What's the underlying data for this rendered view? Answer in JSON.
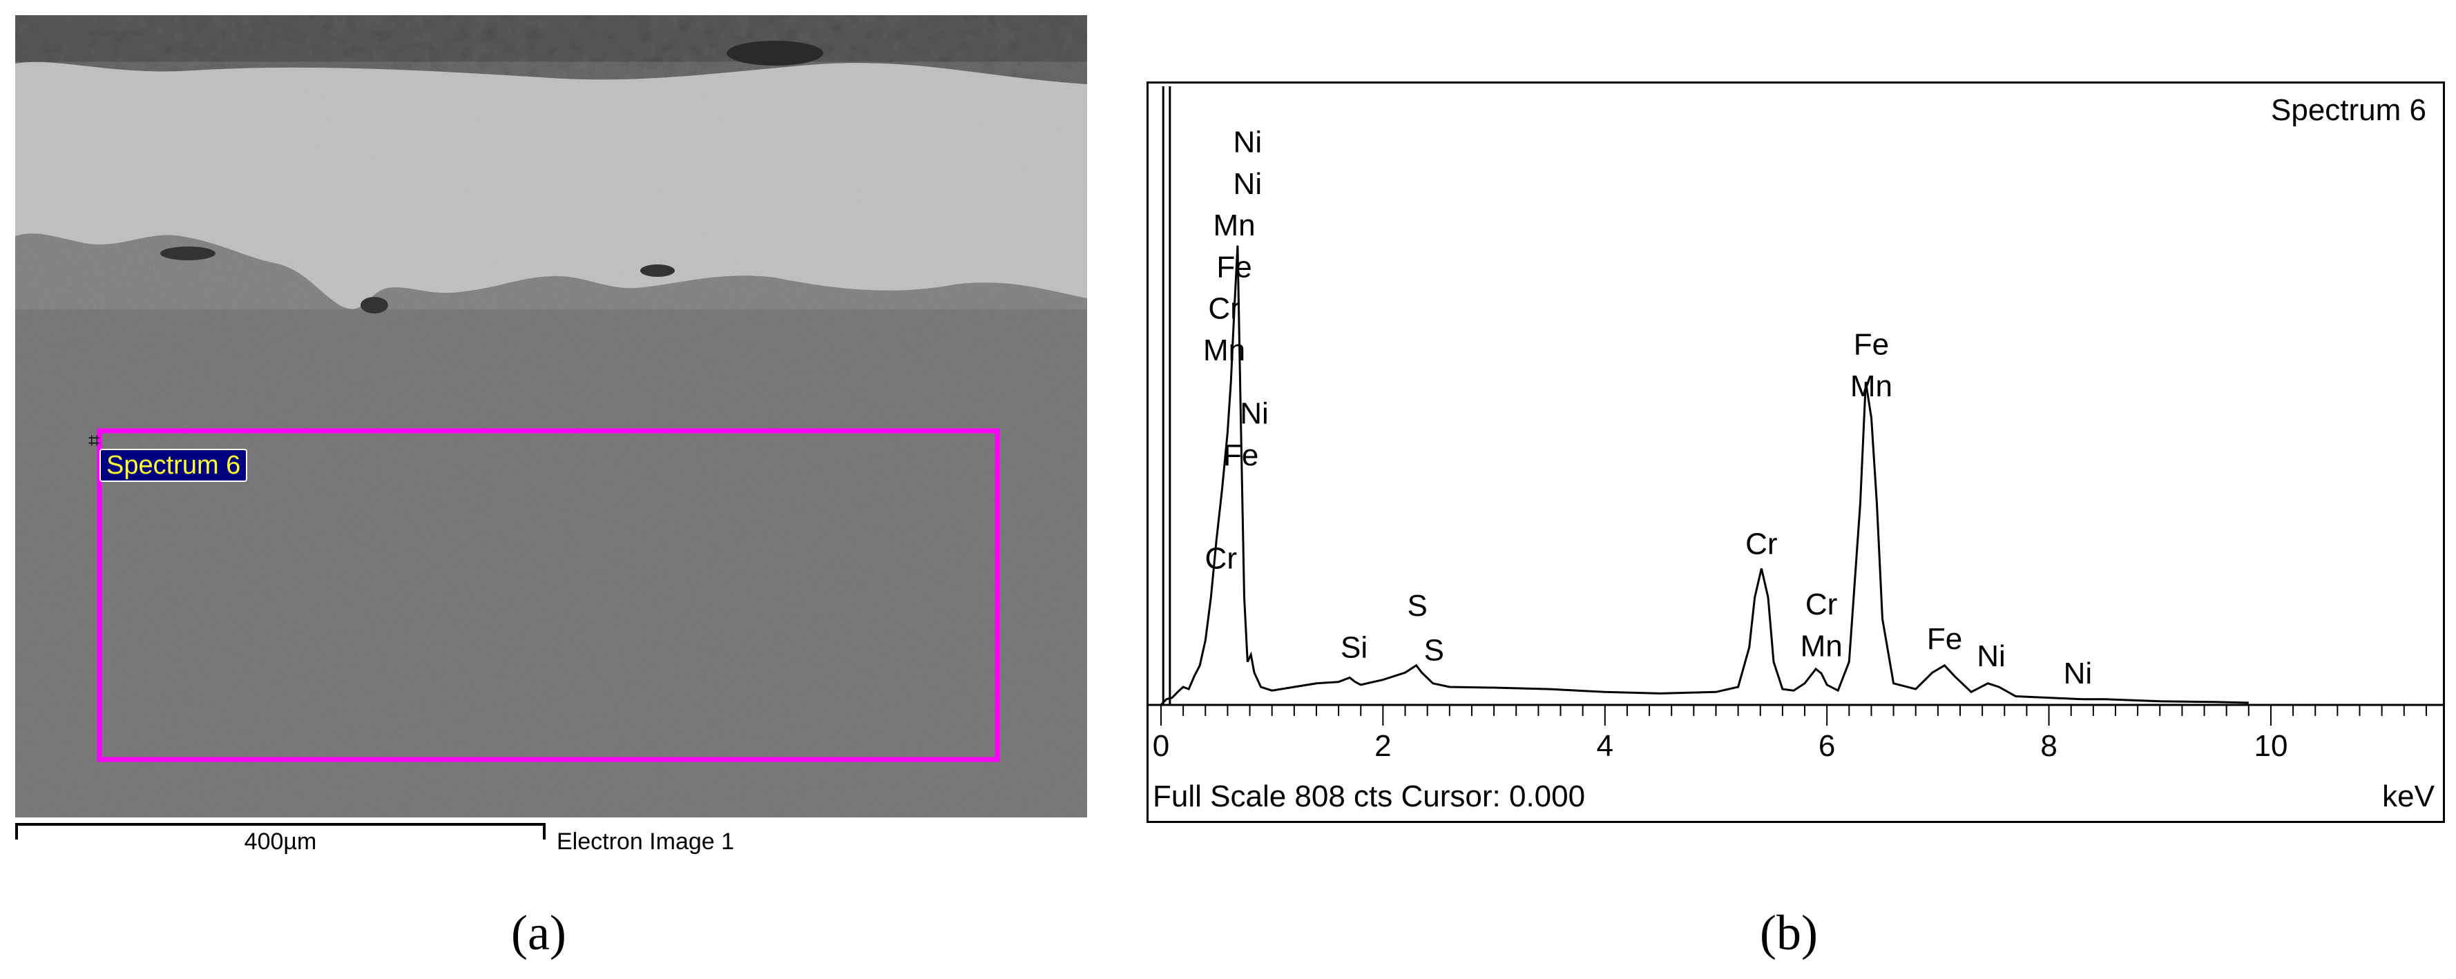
{
  "panel_a": {
    "caption": "(a)",
    "roi_label": "Spectrum 6",
    "roi_marker": "⌗",
    "scale_bar_label": "400µm",
    "image_label": "Electron Image 1",
    "colors": {
      "roi_box": "#ff00ff",
      "label_bg": "#000080",
      "label_text": "#ffff33"
    }
  },
  "panel_b": {
    "caption": "(b)",
    "spectrum_name": "Spectrum 6",
    "footer_left": "Full Scale 808 cts Cursor: 0.000",
    "footer_right": "keV"
  },
  "chart_data": {
    "type": "line",
    "xlabel": "keV",
    "xlim": [
      0,
      11.5
    ],
    "ylim": [
      0,
      808
    ],
    "x_ticks": [
      0,
      2,
      4,
      6,
      8,
      10
    ],
    "full_scale_cts": 808,
    "cursor_kev": 0.0,
    "series": [
      {
        "x": [
          0.0,
          0.05,
          0.1,
          0.15,
          0.2,
          0.25,
          0.3,
          0.35,
          0.4,
          0.45,
          0.5,
          0.55,
          0.6,
          0.63,
          0.66,
          0.69,
          0.72,
          0.75,
          0.78,
          0.81,
          0.84,
          0.9,
          1.0,
          1.2,
          1.4,
          1.6,
          1.7,
          1.75,
          1.8,
          2.0,
          2.2,
          2.3,
          2.35,
          2.45,
          2.6,
          3.0,
          3.5,
          4.0,
          4.5,
          5.0,
          5.2,
          5.3,
          5.35,
          5.41,
          5.47,
          5.52,
          5.6,
          5.7,
          5.8,
          5.9,
          5.95,
          6.0,
          6.1,
          6.2,
          6.3,
          6.35,
          6.4,
          6.45,
          6.5,
          6.6,
          6.8,
          6.95,
          7.06,
          7.15,
          7.3,
          7.45,
          7.55,
          7.7,
          8.0,
          8.3,
          8.5,
          9.0,
          9.5,
          9.8
        ],
        "y": [
          0,
          8,
          10,
          18,
          25,
          22,
          40,
          55,
          90,
          150,
          230,
          300,
          380,
          450,
          550,
          640,
          390,
          150,
          60,
          70,
          45,
          25,
          20,
          25,
          30,
          32,
          38,
          32,
          28,
          35,
          45,
          55,
          45,
          30,
          25,
          24,
          22,
          18,
          16,
          18,
          25,
          80,
          150,
          190,
          150,
          60,
          22,
          20,
          30,
          50,
          44,
          28,
          20,
          60,
          280,
          450,
          400,
          280,
          120,
          30,
          22,
          45,
          55,
          40,
          18,
          30,
          25,
          12,
          10,
          8,
          8,
          5,
          4,
          3
        ]
      }
    ],
    "peak_labels": [
      {
        "text": "Ni",
        "x": 0.78,
        "y": 770
      },
      {
        "text": "Ni",
        "x": 0.78,
        "y": 712
      },
      {
        "text": "Mn",
        "x": 0.66,
        "y": 654
      },
      {
        "text": "Fe",
        "x": 0.66,
        "y": 596
      },
      {
        "text": "Cr",
        "x": 0.57,
        "y": 538
      },
      {
        "text": "Mn",
        "x": 0.57,
        "y": 480
      },
      {
        "text": "Ni",
        "x": 0.84,
        "y": 392
      },
      {
        "text": "Fe",
        "x": 0.72,
        "y": 334
      },
      {
        "text": "Cr",
        "x": 0.54,
        "y": 190
      },
      {
        "text": "Si",
        "x": 1.74,
        "y": 66
      },
      {
        "text": "S",
        "x": 2.31,
        "y": 124
      },
      {
        "text": "S",
        "x": 2.46,
        "y": 62
      },
      {
        "text": "Cr",
        "x": 5.41,
        "y": 210
      },
      {
        "text": "Cr",
        "x": 5.95,
        "y": 126
      },
      {
        "text": "Mn",
        "x": 5.95,
        "y": 68
      },
      {
        "text": "Fe",
        "x": 6.4,
        "y": 488
      },
      {
        "text": "Mn",
        "x": 6.4,
        "y": 430
      },
      {
        "text": "Fe",
        "x": 7.06,
        "y": 78
      },
      {
        "text": "Ni",
        "x": 7.48,
        "y": 54
      },
      {
        "text": "Ni",
        "x": 8.26,
        "y": 30
      }
    ]
  }
}
